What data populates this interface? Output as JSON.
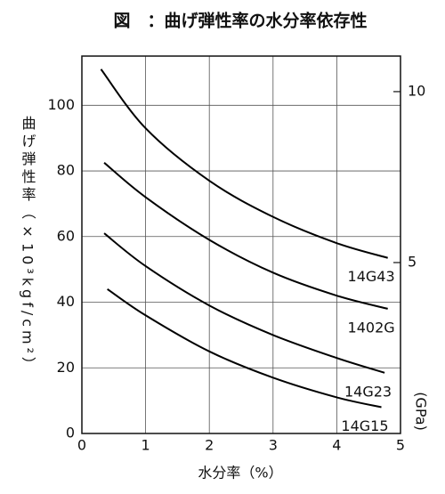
{
  "chart_data": {
    "type": "line",
    "title": "図　：曲げ弾性率の水分率依存性",
    "x_label": "水分率（%）",
    "y_label": "曲げ弾性率（×10³kgf/cm²）",
    "y2_label": "(GPa)",
    "xlim": [
      0,
      5
    ],
    "xticks": [
      0,
      1,
      2,
      3,
      4,
      5
    ],
    "ylim": [
      0,
      115
    ],
    "yticks": [
      0,
      20,
      40,
      60,
      80,
      100
    ],
    "y2lim": [
      0,
      11.04
    ],
    "y2ticks": [
      5,
      10
    ],
    "grid": true,
    "series": [
      {
        "name": "14G43",
        "color": "#000000",
        "x": [
          0.3,
          1,
          2,
          3,
          4,
          4.8
        ],
        "values": [
          111,
          93,
          77,
          66,
          58,
          53.5
        ]
      },
      {
        "name": "1402G",
        "color": "#000000",
        "x": [
          0.35,
          1,
          2,
          3,
          4,
          4.8
        ],
        "values": [
          82.5,
          72,
          59,
          49,
          42,
          38
        ]
      },
      {
        "name": "14G23",
        "color": "#000000",
        "x": [
          0.35,
          1,
          2,
          3,
          4,
          4.75
        ],
        "values": [
          61,
          51,
          39,
          30,
          23,
          18.5
        ]
      },
      {
        "name": "14G15",
        "color": "#000000",
        "x": [
          0.4,
          1,
          2,
          3,
          4,
          4.7
        ],
        "values": [
          44,
          36,
          25,
          17,
          11,
          8
        ]
      }
    ]
  }
}
